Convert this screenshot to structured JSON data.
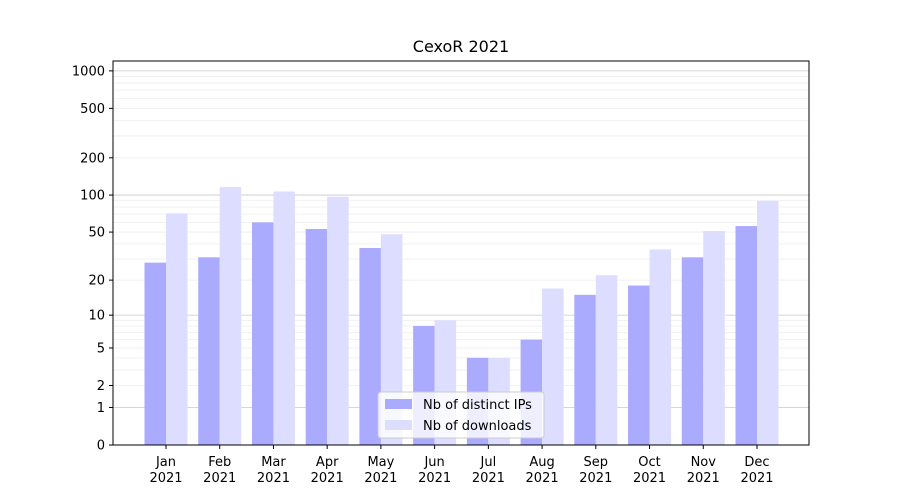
{
  "chart_data": {
    "type": "bar",
    "title": "CexoR 2021",
    "xlabel": "",
    "ylabel": "",
    "yscale": "symlog",
    "ylim": [
      0,
      1200
    ],
    "grid": "horizontal",
    "legend_position": "bottom-center",
    "y_ticks": [
      {
        "value": 0,
        "label": "0"
      },
      {
        "value": 1,
        "label": "1"
      },
      {
        "value": 2,
        "label": "2"
      },
      {
        "value": 5,
        "label": "5"
      },
      {
        "value": 10,
        "label": "10"
      },
      {
        "value": 20,
        "label": "20"
      },
      {
        "value": 50,
        "label": "50"
      },
      {
        "value": 100,
        "label": "100"
      },
      {
        "value": 200,
        "label": "200"
      },
      {
        "value": 500,
        "label": "500"
      },
      {
        "value": 1000,
        "label": "1000"
      }
    ],
    "categories": [
      {
        "month": "Jan",
        "year": "2021"
      },
      {
        "month": "Feb",
        "year": "2021"
      },
      {
        "month": "Mar",
        "year": "2021"
      },
      {
        "month": "Apr",
        "year": "2021"
      },
      {
        "month": "May",
        "year": "2021"
      },
      {
        "month": "Jun",
        "year": "2021"
      },
      {
        "month": "Jul",
        "year": "2021"
      },
      {
        "month": "Aug",
        "year": "2021"
      },
      {
        "month": "Sep",
        "year": "2021"
      },
      {
        "month": "Oct",
        "year": "2021"
      },
      {
        "month": "Nov",
        "year": "2021"
      },
      {
        "month": "Dec",
        "year": "2021"
      }
    ],
    "series": [
      {
        "name": "Nb of distinct IPs",
        "color": "#aaaaff",
        "values": [
          28,
          31,
          60,
          53,
          37,
          8,
          4,
          6,
          15,
          18,
          31,
          56
        ]
      },
      {
        "name": "Nb of downloads",
        "color": "#ddddff",
        "values": [
          71,
          116,
          107,
          97,
          48,
          9,
          4,
          17,
          22,
          36,
          51,
          90
        ]
      }
    ]
  }
}
